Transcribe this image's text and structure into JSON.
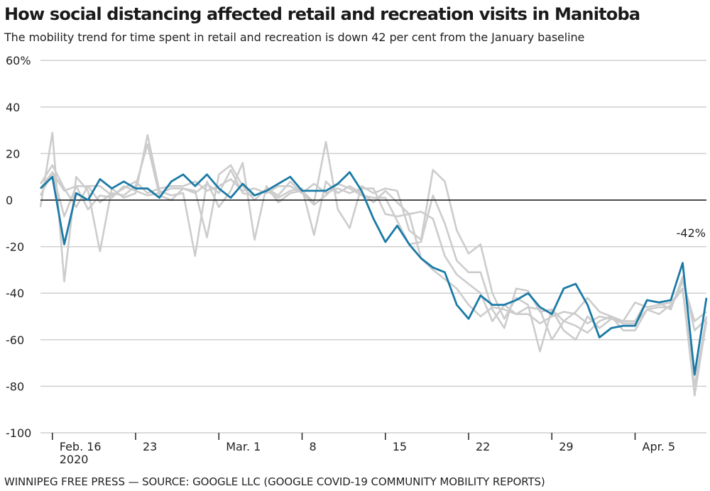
{
  "header": {
    "title": "How social distancing affected retail and recreation visits in Manitoba",
    "subtitle": "The mobility trend for time spent in retail and recreation is down 42 per cent from the January baseline"
  },
  "footer": {
    "source": "WINNIPEG FREE PRESS — SOURCE: GOOGLE LLC (GOOGLE COVID-19 COMMUNITY MOBILITY REPORTS)"
  },
  "colors": {
    "highlight": "#1a7aa6",
    "context": "#cccccc",
    "grid": "#cfcfcf",
    "zero": "#111111"
  },
  "chart_data": {
    "type": "line",
    "title": "How social distancing affected retail and recreation visits in Manitoba",
    "subtitle": "The mobility trend for time spent in retail and recreation is down 42 per cent from the January baseline",
    "xlabel": "",
    "ylabel": "",
    "x_start": "2020-02-15",
    "x_end": "2020-04-11",
    "ylim": [
      -100,
      60
    ],
    "yticks": [
      60,
      40,
      20,
      0,
      -20,
      -40,
      -60,
      -80,
      -100
    ],
    "ytick_labels": [
      "60%",
      "40",
      "20",
      "0",
      "-20",
      "-40",
      "-60",
      "-80",
      "-100"
    ],
    "xticks": [
      {
        "day_index": 1,
        "label": "Feb. 16",
        "sublabel": "2020"
      },
      {
        "day_index": 8,
        "label": "23",
        "sublabel": ""
      },
      {
        "day_index": 15,
        "label": "Mar. 1",
        "sublabel": ""
      },
      {
        "day_index": 22,
        "label": "8",
        "sublabel": ""
      },
      {
        "day_index": 29,
        "label": "15",
        "sublabel": ""
      },
      {
        "day_index": 36,
        "label": "22",
        "sublabel": ""
      },
      {
        "day_index": 43,
        "label": "29",
        "sublabel": ""
      },
      {
        "day_index": 50,
        "label": "Apr. 5",
        "sublabel": ""
      }
    ],
    "grid": true,
    "annotation": {
      "label": "-42%",
      "day_index": 56
    },
    "series": [
      {
        "name": "context-1",
        "highlight": false,
        "values": [
          -3,
          29,
          -35,
          10,
          4,
          -22,
          5,
          1,
          3,
          28,
          4,
          2,
          3,
          -24,
          8,
          -3,
          4,
          16,
          -17,
          6,
          -1,
          3,
          4,
          -1,
          25,
          -4,
          -12,
          6,
          3,
          5,
          4,
          -13,
          -17,
          13,
          8,
          -13,
          -23,
          -19,
          -40,
          -51,
          -42,
          -45,
          -65,
          -47,
          -56,
          -60,
          -50,
          -55,
          -51,
          -52,
          -44,
          -46,
          -45,
          -44,
          -38,
          -84,
          -52
        ]
      },
      {
        "name": "context-2",
        "highlight": false,
        "values": [
          7,
          15,
          5,
          -3,
          6,
          -1,
          3,
          2,
          6,
          24,
          2,
          0,
          5,
          4,
          -16,
          11,
          15,
          6,
          0,
          5,
          2,
          8,
          3,
          -2,
          2,
          7,
          5,
          2,
          1,
          1,
          -9,
          -19,
          -18,
          2,
          -10,
          -26,
          -31,
          -31,
          -47,
          -55,
          -38,
          -39,
          -48,
          -47,
          -52,
          -48,
          -42,
          -48,
          -50,
          -52,
          -52,
          -43,
          -44,
          -47,
          -33,
          -56,
          -51
        ]
      },
      {
        "name": "context-3",
        "highlight": false,
        "values": [
          2,
          12,
          -7,
          6,
          -4,
          2,
          1,
          6,
          4,
          2,
          3,
          5,
          5,
          3,
          7,
          3,
          13,
          3,
          2,
          4,
          1,
          4,
          5,
          -15,
          8,
          3,
          6,
          3,
          -1,
          4,
          -1,
          -6,
          -5,
          -8,
          -24,
          -32,
          -36,
          -40,
          -52,
          -45,
          -49,
          -46,
          -47,
          -60,
          -52,
          -54,
          -57,
          -52,
          -50,
          -56,
          -56,
          -47,
          -49,
          -45,
          -38,
          -80,
          -50
        ]
      },
      {
        "name": "context-4",
        "highlight": false,
        "values": [
          5,
          12,
          4,
          6,
          6,
          6,
          2,
          5,
          8,
          3,
          5,
          6,
          6,
          8,
          4,
          6,
          9,
          4,
          5,
          3,
          6,
          6,
          3,
          7,
          3,
          5,
          3,
          5,
          5,
          -6,
          -7,
          -6,
          -25,
          -30,
          -34,
          -38,
          -45,
          -50,
          -46,
          -47,
          -49,
          -49,
          -53,
          -50,
          -48,
          -49,
          -53,
          -50,
          -51,
          -53,
          -53,
          -47,
          -46,
          -46,
          -35,
          -52,
          -48
        ]
      },
      {
        "name": "Manitoba",
        "highlight": true,
        "values": [
          5,
          10,
          -19,
          3,
          0,
          9,
          5,
          8,
          5,
          5,
          1,
          8,
          11,
          6,
          11,
          5,
          1,
          7,
          2,
          4,
          7,
          10,
          4,
          4,
          4,
          7,
          12,
          4,
          -8,
          -18,
          -11,
          -19,
          -25,
          -29,
          -31,
          -45,
          -51,
          -41,
          -45,
          -45,
          -43,
          -40,
          -46,
          -49,
          -38,
          -36,
          -45,
          -59,
          -55,
          -54,
          -54,
          -43,
          -44,
          -43,
          -27,
          -75,
          -42
        ]
      }
    ]
  }
}
